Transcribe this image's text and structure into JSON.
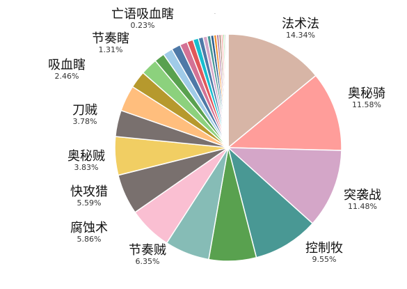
{
  "chart_data": {
    "type": "pie",
    "slices": [
      {
        "label": "法术法",
        "pct_label": "14.34%",
        "value": 14.34,
        "color": "#d7b5a6"
      },
      {
        "label": "奥秘骑",
        "pct_label": "11.58%",
        "value": 11.58,
        "color": "#ff9d9a"
      },
      {
        "label": "突袭战",
        "pct_label": "11.48%",
        "value": 11.48,
        "color": "#d4a6c8"
      },
      {
        "label": "控制牧",
        "pct_label": "9.55%",
        "value": 9.55,
        "color": "#499894"
      },
      {
        "label": "",
        "pct_label": "",
        "value": 6.9,
        "color": "#59a14f"
      },
      {
        "label": "",
        "pct_label": "",
        "value": 6.5,
        "color": "#86bcb6"
      },
      {
        "label": "节奏贼",
        "pct_label": "6.35%",
        "value": 6.35,
        "color": "#fabfd2"
      },
      {
        "label": "腐蚀术",
        "pct_label": "5.86%",
        "value": 5.86,
        "color": "#79706e"
      },
      {
        "label": "快攻猎",
        "pct_label": "5.59%",
        "value": 5.59,
        "color": "#f1ce63"
      },
      {
        "label": "奥秘贼",
        "pct_label": "3.83%",
        "value": 3.83,
        "color": "#79706e"
      },
      {
        "label": "刀贼",
        "pct_label": "3.78%",
        "value": 3.78,
        "color": "#ffbe7d"
      },
      {
        "label": "",
        "pct_label": "",
        "value": 2.5,
        "color": "#b6992d"
      },
      {
        "label": "吸血瞎",
        "pct_label": "2.46%",
        "value": 2.46,
        "color": "#8cd17d"
      },
      {
        "label": "",
        "pct_label": "",
        "value": 1.5,
        "color": "#59a14f"
      },
      {
        "label": "",
        "pct_label": "",
        "value": 1.4,
        "color": "#a0cbe8"
      },
      {
        "label": "节奏瞎",
        "pct_label": "1.31%",
        "value": 1.31,
        "color": "#4e79a7"
      },
      {
        "label": "",
        "pct_label": "",
        "value": 1.1,
        "color": "#d37295"
      },
      {
        "label": "",
        "pct_label": "",
        "value": 0.9,
        "color": "#e15759"
      },
      {
        "label": "",
        "pct_label": "",
        "value": 0.8,
        "color": "#17becf"
      },
      {
        "label": "",
        "pct_label": "",
        "value": 0.7,
        "color": "#4e79a7"
      },
      {
        "label": "",
        "pct_label": "",
        "value": 0.6,
        "color": "#d4a6c8"
      },
      {
        "label": "",
        "pct_label": "",
        "value": 0.5,
        "color": "#499894"
      },
      {
        "label": "",
        "pct_label": "",
        "value": 0.45,
        "color": "#2e5f8f"
      },
      {
        "label": "",
        "pct_label": "",
        "value": 0.4,
        "color": "#f28e2b"
      },
      {
        "label": "",
        "pct_label": "",
        "value": 0.35,
        "color": "#b07aa1"
      },
      {
        "label": "",
        "pct_label": "",
        "value": 0.3,
        "color": "#9c755f"
      },
      {
        "label": "",
        "pct_label": "",
        "value": 0.28,
        "color": "#ff9d9a"
      },
      {
        "label": "亡语吸血瞎",
        "pct_label": "0.23%",
        "value": 0.23,
        "color": "#8cd17d"
      },
      {
        "label": "",
        "pct_label": "",
        "value": 0.2,
        "color": "#bab0ac"
      },
      {
        "label": "",
        "pct_label": "",
        "value": 0.15,
        "color": "#e15759"
      },
      {
        "label": "",
        "pct_label": "",
        "value": 0.1,
        "color": "#76b7b2"
      },
      {
        "label": "",
        "pct_label": "",
        "value": 0.08,
        "color": "#edc948"
      }
    ]
  }
}
